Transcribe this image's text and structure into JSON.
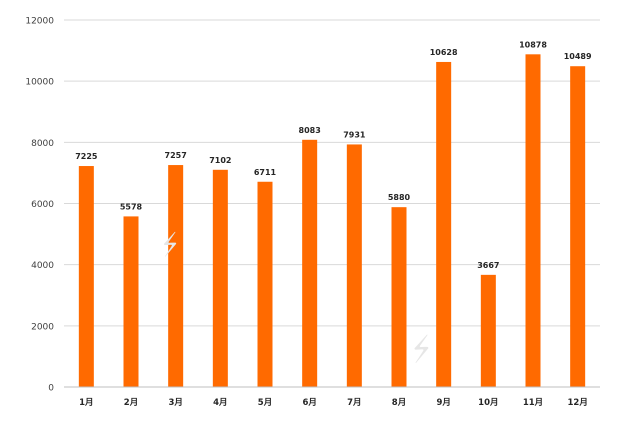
{
  "chart_data": {
    "type": "bar",
    "title": "",
    "xlabel": "",
    "ylabel": "",
    "categories": [
      "1月",
      "2月",
      "3月",
      "4月",
      "5月",
      "6月",
      "7月",
      "8月",
      "9月",
      "10月",
      "11月",
      "12月"
    ],
    "series": [
      {
        "values": [
          7225,
          5578,
          7257,
          7102,
          6711,
          8083,
          7931,
          5880,
          10628,
          3667,
          10878,
          10489
        ],
        "color": "#ff6a00"
      }
    ],
    "ylim": [
      0,
      12000
    ],
    "yticks": [
      0,
      2000,
      4000,
      6000,
      8000,
      10000,
      12000
    ],
    "grid": true,
    "legend": "none",
    "data_labels": true
  }
}
